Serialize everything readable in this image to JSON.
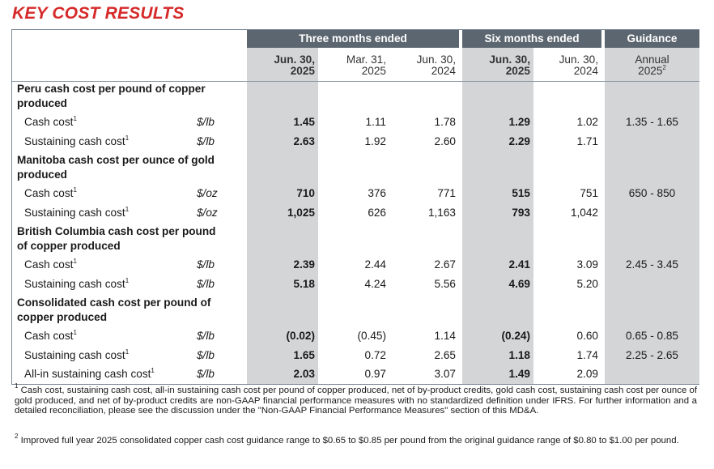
{
  "title": "KEY COST RESULTS",
  "headers": {
    "three_months": "Three months ended",
    "six_months": "Six months ended",
    "guidance": "Guidance"
  },
  "periods": {
    "q2_2025": [
      "Jun. 30,",
      "2025"
    ],
    "q1_2025": [
      "Mar. 31,",
      "2025"
    ],
    "q2_2024": [
      "Jun. 30,",
      "2024"
    ],
    "h1_2025": [
      "Jun. 30,",
      "2025"
    ],
    "h1_2024": [
      "Jun. 30,",
      "2024"
    ],
    "guidance": [
      "Annual",
      "2025",
      "2"
    ]
  },
  "sections": [
    {
      "heading": [
        "Peru cash cost per pound of copper",
        "produced"
      ],
      "rows": [
        {
          "label": "Cash cost",
          "sup": "1",
          "unit": "$/lb",
          "values": [
            "1.45",
            "1.11",
            "1.78",
            "1.29",
            "1.02"
          ],
          "guidance": "1.35 - 1.65"
        },
        {
          "label": "Sustaining cash cost",
          "sup": "1",
          "unit": "$/lb",
          "values": [
            "2.63",
            "1.92",
            "2.60",
            "2.29",
            "1.71"
          ],
          "guidance": ""
        }
      ]
    },
    {
      "heading": [
        "Manitoba cash cost per ounce of gold",
        "produced"
      ],
      "rows": [
        {
          "label": "Cash cost",
          "sup": "1",
          "unit": "$/oz",
          "values": [
            "710",
            "376",
            "771",
            "515",
            "751"
          ],
          "guidance": "650 - 850"
        },
        {
          "label": "Sustaining cash cost",
          "sup": "1",
          "unit": "$/oz",
          "values": [
            "1,025",
            "626",
            "1,163",
            "793",
            "1,042"
          ],
          "guidance": ""
        }
      ]
    },
    {
      "heading": [
        "British Columbia cash cost per pound",
        "of copper produced"
      ],
      "rows": [
        {
          "label": "Cash cost",
          "sup": "1",
          "unit": "$/lb",
          "values": [
            "2.39",
            "2.44",
            "2.67",
            "2.41",
            "3.09"
          ],
          "guidance": "2.45 - 3.45"
        },
        {
          "label": "Sustaining cash cost",
          "sup": "1",
          "unit": "$/lb",
          "values": [
            "5.18",
            "4.24",
            "5.56",
            "4.69",
            "5.20"
          ],
          "guidance": ""
        }
      ]
    },
    {
      "heading": [
        "Consolidated cash cost per pound of",
        "copper produced"
      ],
      "rows": [
        {
          "label": "Cash cost",
          "sup": "1",
          "unit": "$/lb",
          "values": [
            "(0.02)",
            "(0.45)",
            "1.14",
            "(0.24)",
            "0.60"
          ],
          "guidance": "0.65 - 0.85"
        },
        {
          "label": "Sustaining cash cost",
          "sup": "1",
          "unit": "$/lb",
          "values": [
            "1.65",
            "0.72",
            "2.65",
            "1.18",
            "1.74"
          ],
          "guidance": "2.25 - 2.65"
        },
        {
          "label": "All-in sustaining cash cost",
          "sup": "1",
          "unit": "$/lb",
          "values": [
            "2.03",
            "0.97",
            "3.07",
            "1.49",
            "2.09"
          ],
          "guidance": ""
        }
      ]
    }
  ],
  "footnotes": [
    {
      "mark": "1",
      "text": "Cash cost, sustaining cash cost, all-in sustaining cash cost per pound of copper produced, net of by-product credits, gold cash cost, sustaining cash cost per ounce of gold produced, and net of by-product credits are non-GAAP financial performance measures with no standardized definition under IFRS. For further information and a detailed reconciliation, please see the discussion under the \"Non-GAAP Financial Performance Measures\" section of this MD&A."
    },
    {
      "mark": "2",
      "text": "Improved full year 2025 consolidated copper cash cost guidance range to $0.65 to $0.85 per pound from the original guidance range of $0.80 to $1.00 per pound."
    }
  ]
}
